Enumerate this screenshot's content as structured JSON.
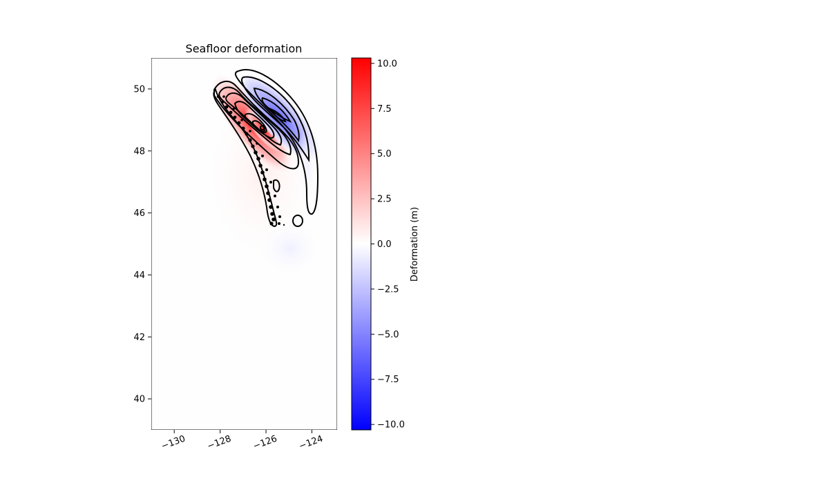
{
  "chart_data": {
    "type": "heatmap",
    "title": "Seafloor deformation",
    "xlabel": "",
    "ylabel": "",
    "xlim": [
      -131,
      -122.9
    ],
    "ylim": [
      39,
      51
    ],
    "x_ticks": [
      -130,
      -128,
      -126,
      -124
    ],
    "x_tick_labels": [
      "−130",
      "−128",
      "−126",
      "−124"
    ],
    "y_ticks": [
      40,
      42,
      44,
      46,
      48,
      50
    ],
    "y_tick_labels": [
      "40",
      "42",
      "44",
      "46",
      "48",
      "50"
    ],
    "colorbar": {
      "label": "Deformation (m)",
      "vmin": -10.3,
      "vmax": 10.3,
      "ticks": [
        10.0,
        7.5,
        5.0,
        2.5,
        0.0,
        -2.5,
        -5.0,
        -7.5,
        -10.0
      ],
      "tick_labels": [
        "10.0",
        "7.5",
        "5.0",
        "2.5",
        "0.0",
        "−2.5",
        "−5.0",
        "−7.5",
        "−10.0"
      ],
      "colormap": "bwr",
      "low_color": "#0000ff",
      "mid_color": "#ffffff",
      "high_color": "#ff0000"
    },
    "uplift_peak": {
      "lon": -125.9,
      "lat": 48.7,
      "value": 10.0
    },
    "subsidence_peak": {
      "lon": -125.0,
      "lat": 49.0,
      "value": -6.0
    },
    "contour_color": "#000000",
    "grid": false
  }
}
